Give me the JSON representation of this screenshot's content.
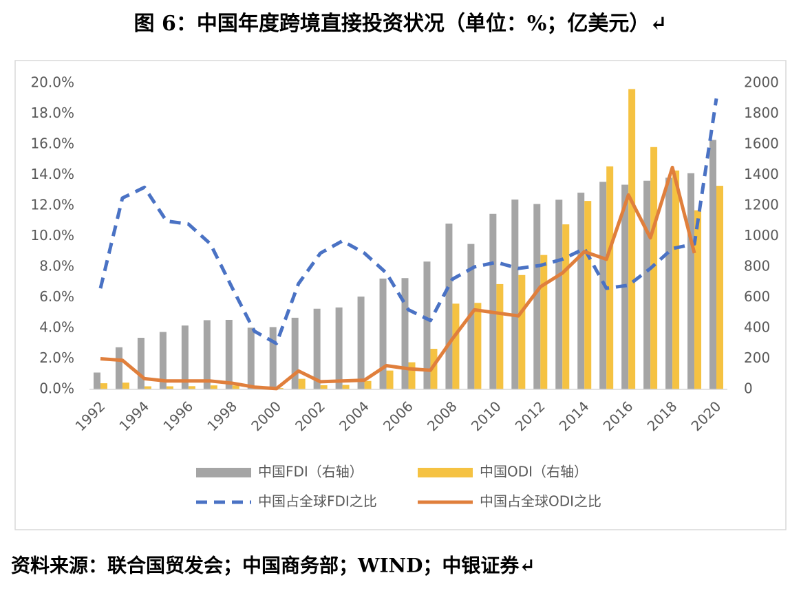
{
  "chart_data": {
    "type": "bar",
    "title": "图 6：中国年度跨境直接投资状况（单位：%；亿美元）↵",
    "source": "资料来源：联合国贸发会；中国商务部；WIND；中银证券↵",
    "categories": [
      "1992",
      null,
      "1994",
      null,
      "1996",
      null,
      "1998",
      null,
      "2000",
      null,
      "2002",
      null,
      "2004",
      null,
      "2006",
      null,
      "2008",
      null,
      "2010",
      null,
      "2012",
      null,
      "2014",
      null,
      "2016",
      null,
      "2018",
      null,
      "2020"
    ],
    "ylim": [
      0,
      20
    ],
    "yticks": [
      {
        "value": 0,
        "label": "0.0%"
      },
      {
        "value": 2,
        "label": "2.0%"
      },
      {
        "value": 4,
        "label": "4.0%"
      },
      {
        "value": 6,
        "label": "6.0%"
      },
      {
        "value": 8,
        "label": "8.0%"
      },
      {
        "value": 10,
        "label": "10.0%"
      },
      {
        "value": 12,
        "label": "12.0%"
      },
      {
        "value": 14,
        "label": "14.0%"
      },
      {
        "value": 16,
        "label": "16.0%"
      },
      {
        "value": 18,
        "label": "18.0%"
      },
      {
        "value": 20,
        "label": "20.0%"
      }
    ],
    "y2lim": [
      0,
      2000
    ],
    "y2ticks": [
      0,
      200,
      400,
      600,
      800,
      1000,
      1200,
      1400,
      1600,
      1800,
      2000
    ],
    "grid": false,
    "legend": "bottom",
    "series": [
      {
        "name": "中国FDI（右轴）",
        "type": "bar",
        "axis": "y2",
        "color": "#a5a5a5",
        "values": [
          110,
          275,
          337,
          375,
          417,
          452,
          454,
          403,
          407,
          468,
          527,
          535,
          606,
          724,
          727,
          835,
          1083,
          950,
          1147,
          1240,
          1211,
          1239,
          1285,
          1356,
          1337,
          1363,
          1383,
          1412,
          1630
        ]
      },
      {
        "name": "中国ODI（右轴）",
        "type": "bar",
        "axis": "y2",
        "color": "#f5c242",
        "values": [
          40,
          44,
          20,
          20,
          21,
          26,
          26,
          18,
          9,
          69,
          27,
          29,
          55,
          123,
          177,
          265,
          560,
          565,
          688,
          747,
          878,
          1078,
          1231,
          1457,
          1962,
          1583,
          1430,
          1170,
          1330
        ]
      },
      {
        "name": "中国占全球FDI之比",
        "type": "line",
        "line_style": "dashed",
        "color": "#4a72c4",
        "values": [
          6.6,
          12.5,
          13.2,
          11.0,
          10.8,
          9.5,
          6.6,
          3.8,
          3.0,
          6.9,
          8.9,
          9.7,
          8.9,
          7.6,
          5.2,
          4.5,
          7.2,
          8.0,
          8.3,
          7.9,
          8.1,
          8.5,
          9.2,
          6.6,
          6.8,
          7.9,
          9.2,
          9.5,
          19.0
        ]
      },
      {
        "name": "中国占全球ODI之比",
        "type": "line",
        "line_style": "solid",
        "color": "#e07f3c",
        "values": [
          2.0,
          1.9,
          0.7,
          0.55,
          0.55,
          0.55,
          0.4,
          0.15,
          0.05,
          1.2,
          0.5,
          0.55,
          0.6,
          1.55,
          1.35,
          1.25,
          3.3,
          5.2,
          5.0,
          4.8,
          6.7,
          7.6,
          9.0,
          8.5,
          12.7,
          9.9,
          14.5,
          8.9,
          null
        ]
      }
    ]
  }
}
